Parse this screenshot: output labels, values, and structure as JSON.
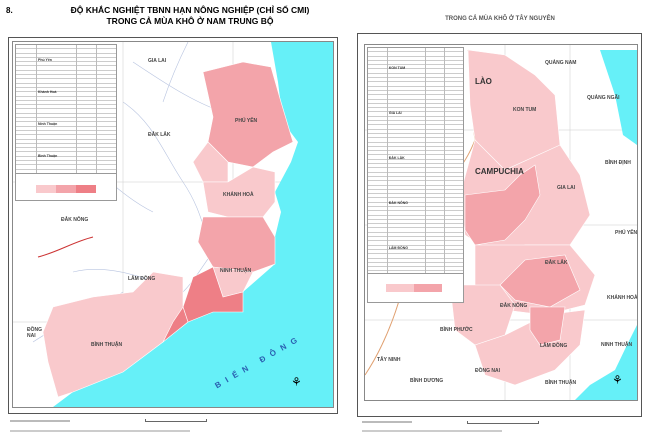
{
  "figure_number": "8.",
  "title_line1": "ĐỘ KHẮC NGHIỆT TBNN HẠN NÔNG NGHIỆP (CHỈ SỐ CMI)",
  "title_line2": "TRONG CẢ MÙA KHÔ Ở NAM TRUNG BỘ",
  "right_title": "TRONG CẢ MÙA KHÔ Ở TÂY NGUYÊN",
  "colors": {
    "sea": "#66f0f8",
    "level_low": "#f9c9cc",
    "level_mid": "#f3a4aa",
    "level_high": "#ee7f86",
    "land": "#ffffff",
    "river": "#b8c4e0"
  },
  "left_map": {
    "table_groups": [
      "Phú Yên",
      "Khánh Hoà",
      "Ninh Thuận",
      "Bình Thuận"
    ],
    "labels": {
      "gia_lai": "GIA LAI",
      "phu_yen": "PHÚ YÊN",
      "dak_lak": "ĐẮK LẮK",
      "khanh_hoa": "KHÁNH HOÀ",
      "dak_nong": "ĐẮK NÔNG",
      "lam_dong": "LÂM ĐỒNG",
      "ninh_thuan": "NINH THUẬN",
      "binh_thuan": "BÌNH THUẬN",
      "dong_nai": "ĐỒNG NAI",
      "sea": "BIỂN ĐÔNG"
    }
  },
  "right_map": {
    "table_groups": [
      "KON TUM",
      "GIA LAI",
      "ĐẮK LẮK",
      "ĐẮK NÔNG",
      "LÂM ĐỒNG"
    ],
    "labels": {
      "quang_nam": "QUẢNG NAM",
      "kon_tum": "KON TUM",
      "quang_ngai": "QUẢNG NGÃI",
      "binh_dinh": "BÌNH ĐỊNH",
      "gia_lai": "GIA LAI",
      "phu_yen": "PHÚ YÊN",
      "dak_lak": "ĐẮK LẮK",
      "khanh_hoa": "KHÁNH HOÀ",
      "dak_nong": "ĐẮK NÔNG",
      "lam_dong": "LÂM ĐỒNG",
      "ninh_thuan": "NINH THUẬN",
      "binh_phuoc": "BÌNH PHƯỚC",
      "tay_ninh": "TÂY NINH",
      "binh_duong": "BÌNH DƯƠNG",
      "dong_nai": "ĐỒNG NAI",
      "binh_thuan": "BÌNH THUẬN",
      "laos": "LÀO",
      "cambodia": "CAMPUCHIA"
    }
  },
  "icons": {
    "north_arrow": "compass-north-icon"
  }
}
